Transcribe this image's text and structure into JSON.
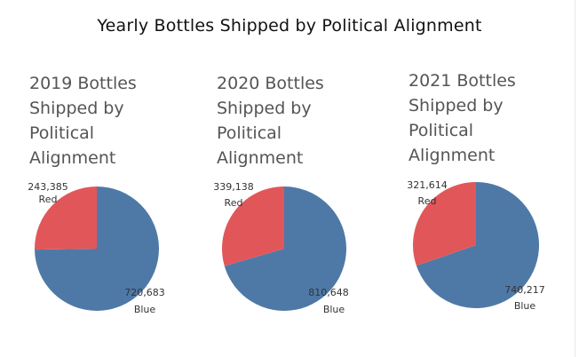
{
  "title": "Yearly Bottles Shipped by Political Alignment",
  "colors": {
    "red": "#e15759",
    "blue": "#4e79a7"
  },
  "chart_data": [
    {
      "type": "pie",
      "title": "2019 Bottles Shipped by Political Alignment",
      "title_lines": [
        "2019 Bottles",
        "Shipped by",
        "Political",
        "Alignment"
      ],
      "slices": [
        {
          "label": "Red",
          "value": 243385,
          "value_text": "243,385",
          "color": "#e15759"
        },
        {
          "label": "Blue",
          "value": 720683,
          "value_text": "720,683",
          "color": "#4e79a7"
        }
      ]
    },
    {
      "type": "pie",
      "title": "2020 Bottles Shipped by Political Alignment",
      "title_lines": [
        "2020 Bottles",
        "Shipped by",
        "Political",
        "Alignment"
      ],
      "slices": [
        {
          "label": "Red",
          "value": 339138,
          "value_text": "339,138",
          "color": "#e15759"
        },
        {
          "label": "Blue",
          "value": 810648,
          "value_text": "810,648",
          "color": "#4e79a7"
        }
      ]
    },
    {
      "type": "pie",
      "title": "2021 Bottles Shipped by Political Alignment",
      "title_lines": [
        "2021 Bottles",
        "Shipped by",
        "Political",
        "Alignment"
      ],
      "slices": [
        {
          "label": "Red",
          "value": 321614,
          "value_text": "321,614",
          "color": "#e15759"
        },
        {
          "label": "Blue",
          "value": 740217,
          "value_text": "740,217",
          "color": "#4e79a7"
        }
      ]
    }
  ]
}
